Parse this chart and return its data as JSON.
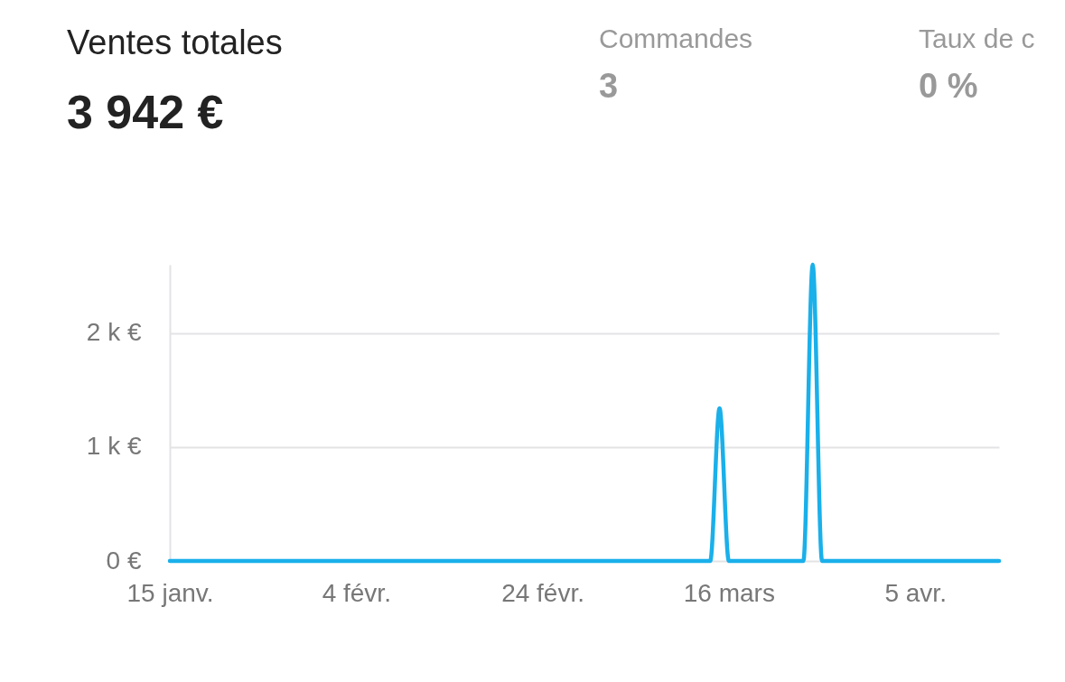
{
  "chart_data": {
    "type": "line",
    "title": "Ventes totales",
    "subtitle": "3 942 €",
    "annotations": [
      "Commandes",
      "3",
      "Taux de c",
      "0 %"
    ],
    "x": [
      "--01-15",
      "--03-14",
      "--03-15",
      "--03-16",
      "--03-24",
      "--03-25",
      "--03-26",
      "--04-14"
    ],
    "series": [
      {
        "color": "#1ab0ea",
        "values": [
          0,
          0,
          1340,
          0,
          0,
          2600,
          0,
          0
        ]
      }
    ],
    "xlim": [
      "--01-15",
      "--04-14"
    ],
    "xticks": [
      {
        "value": "--01-15",
        "label": "15 janv."
      },
      {
        "value": "--02-04",
        "label": "4 févr."
      },
      {
        "value": "--02-24",
        "label": "24 févr."
      },
      {
        "value": "--03-16",
        "label": "16 mars"
      },
      {
        "value": "--04-05",
        "label": "5 avr."
      }
    ],
    "yticks": [
      {
        "value": 0,
        "label": "0 €"
      },
      {
        "value": 1000,
        "label": "1 k €"
      },
      {
        "value": 2000,
        "label": "2 k €"
      }
    ],
    "ylim": [
      0,
      2600
    ],
    "grid": "y",
    "line_style": "solid",
    "marker": "none"
  }
}
